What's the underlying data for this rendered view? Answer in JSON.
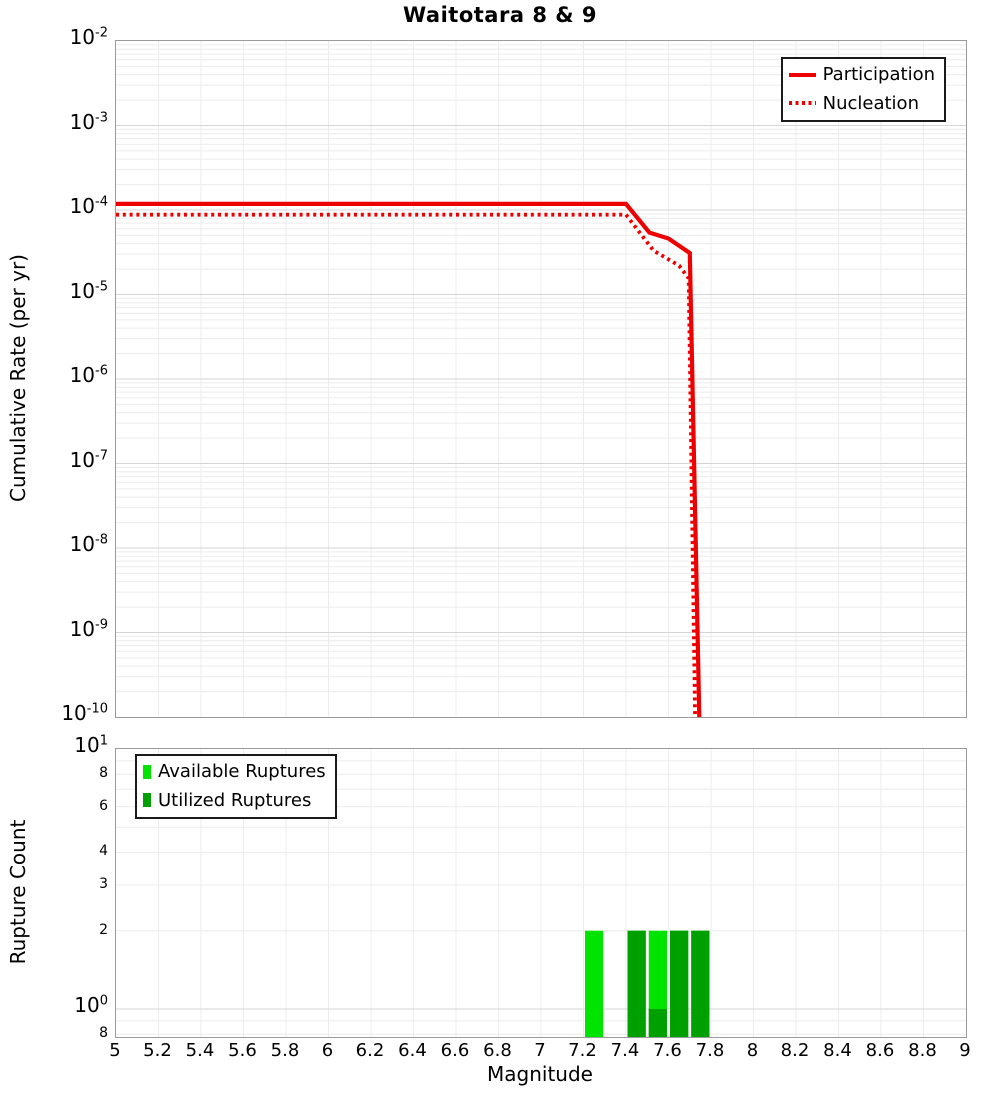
{
  "figure": {
    "title": "Waitotara 8 & 9"
  },
  "chart_data": [
    {
      "type": "line",
      "panel": "top",
      "title": "Waitotara 8 & 9",
      "xlabel": "",
      "ylabel": "Cumulative Rate (per yr)",
      "x_range": [
        5,
        9
      ],
      "y_log_range": [
        1e-10,
        0.01
      ],
      "y_scale": "log",
      "grid": "on",
      "legend_position": "top-right",
      "y_tick_exponents": [
        "-2",
        "-3",
        "-4",
        "-5",
        "-6",
        "-7",
        "-8",
        "-9",
        "-10"
      ],
      "series": [
        {
          "name": "Participation",
          "line_style": "solid",
          "color": "#ee0000",
          "points": [
            [
              5.0,
              0.000118
            ],
            [
              7.4,
              0.000118
            ],
            [
              7.51,
              5.4e-05
            ],
            [
              7.6,
              4.6e-05
            ],
            [
              7.7,
              3.1e-05
            ],
            [
              7.745,
              1e-10
            ]
          ]
        },
        {
          "name": "Nucleation",
          "line_style": "dotted",
          "color": "#ee0000",
          "points": [
            [
              5.0,
              8.8e-05
            ],
            [
              7.4,
              8.8e-05
            ],
            [
              7.53,
              3.3e-05
            ],
            [
              7.6,
              2.6e-05
            ],
            [
              7.65,
              2.2e-05
            ],
            [
              7.695,
              1.55e-05
            ],
            [
              7.725,
              1e-10
            ]
          ]
        }
      ]
    },
    {
      "type": "bar",
      "panel": "bottom",
      "xlabel": "Magnitude",
      "ylabel": "Rupture Count",
      "x_range": [
        5,
        9
      ],
      "y_log_range": [
        0.78,
        10
      ],
      "y_scale": "log",
      "grid": "on",
      "legend_position": "top-left",
      "x_tick_labels": [
        "5",
        "5.2",
        "5.4",
        "5.6",
        "5.8",
        "6",
        "6.2",
        "6.4",
        "6.6",
        "6.8",
        "7",
        "7.2",
        "7.4",
        "7.6",
        "7.8",
        "8",
        "8.2",
        "8.4",
        "8.6",
        "8.8",
        "9"
      ],
      "y_major_ticks": [
        {
          "exp": "1",
          "value": 10
        },
        {
          "exp": "0",
          "value": 1
        }
      ],
      "y_minor_ticks": [
        {
          "label": "8",
          "value": 8
        },
        {
          "label": "6",
          "value": 6
        },
        {
          "label": "4",
          "value": 4
        },
        {
          "label": "3",
          "value": 3
        },
        {
          "label": "2",
          "value": 2
        },
        {
          "label": "8",
          "value": 0.8
        }
      ],
      "y_minor_grid_values": [
        9,
        8,
        7,
        6,
        5,
        4,
        3,
        2,
        0.9,
        0.8
      ],
      "legend": [
        {
          "label": "Available Ruptures",
          "color": "#00e400"
        },
        {
          "label": "Utilized Ruptures",
          "color": "#00a000"
        }
      ],
      "bars": [
        {
          "bin_start": 7.2,
          "bin_end": 7.3,
          "available": 2,
          "utilized": 0
        },
        {
          "bin_start": 7.4,
          "bin_end": 7.5,
          "available": 2,
          "utilized": 2
        },
        {
          "bin_start": 7.5,
          "bin_end": 7.6,
          "available": 2,
          "utilized": 1
        },
        {
          "bin_start": 7.6,
          "bin_end": 7.7,
          "available": 2,
          "utilized": 2
        },
        {
          "bin_start": 7.7,
          "bin_end": 7.8,
          "available": 2,
          "utilized": 2
        }
      ]
    }
  ],
  "style_colors": {
    "grid_major": "#d4d4d4",
    "grid_minor": "#ececec",
    "spine": "#9b9b9b",
    "series_red": "#ee0000",
    "available_green": "#00e400",
    "utilized_green": "#00a000"
  }
}
